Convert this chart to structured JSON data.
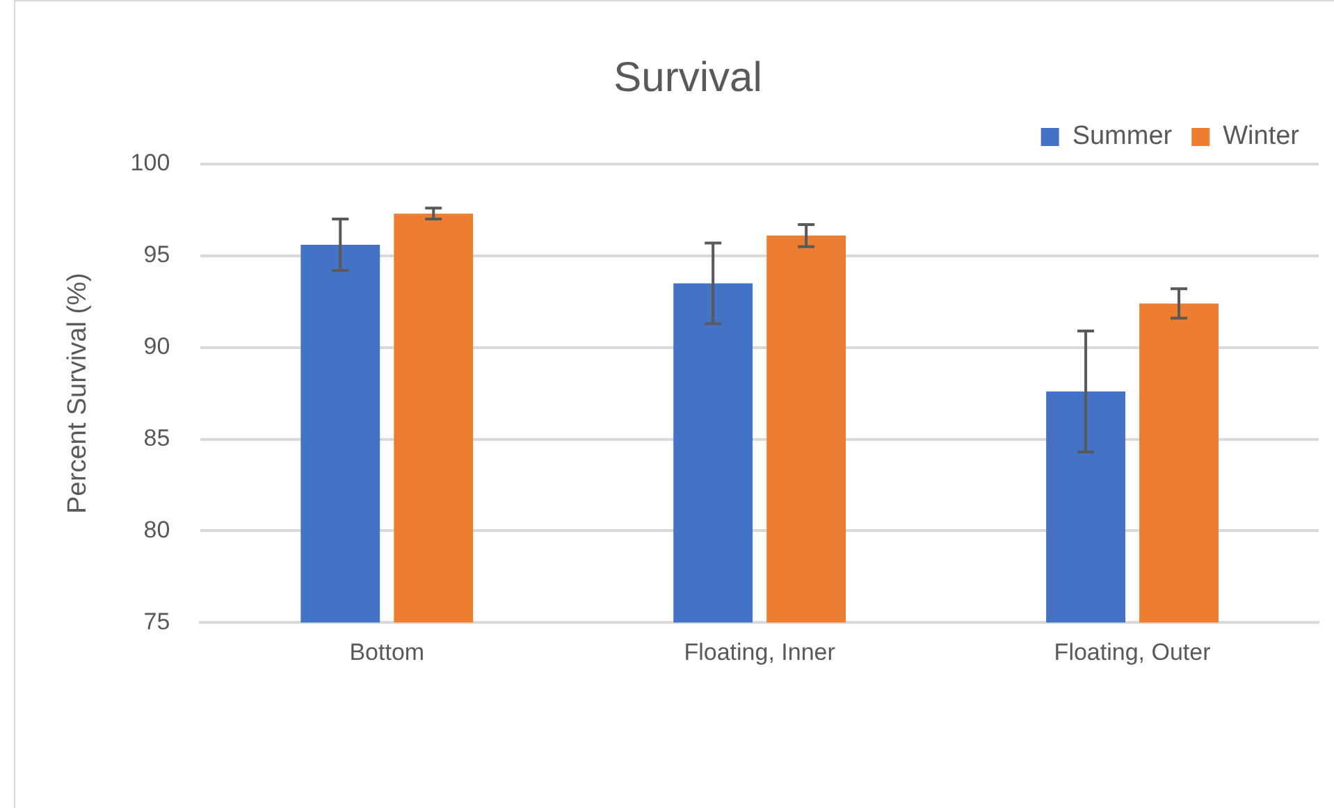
{
  "chart_data": {
    "type": "bar",
    "title": "Survival",
    "ylabel": "Percent Survival (%)",
    "categories": [
      "Bottom",
      "Floating, Inner",
      "Floating, Outer"
    ],
    "series": [
      {
        "name": "Summer",
        "color": "#4472c4",
        "values": [
          95.6,
          93.5,
          87.6
        ],
        "errors": [
          1.4,
          2.2,
          3.3
        ]
      },
      {
        "name": "Winter",
        "color": "#ed7d31",
        "values": [
          97.3,
          96.1,
          92.4
        ],
        "errors": [
          0.3,
          0.6,
          0.8
        ]
      }
    ],
    "ylim": [
      75,
      100
    ],
    "yticks": [
      75,
      80,
      85,
      90,
      95,
      100
    ],
    "grid": "y",
    "legend": "top right"
  }
}
